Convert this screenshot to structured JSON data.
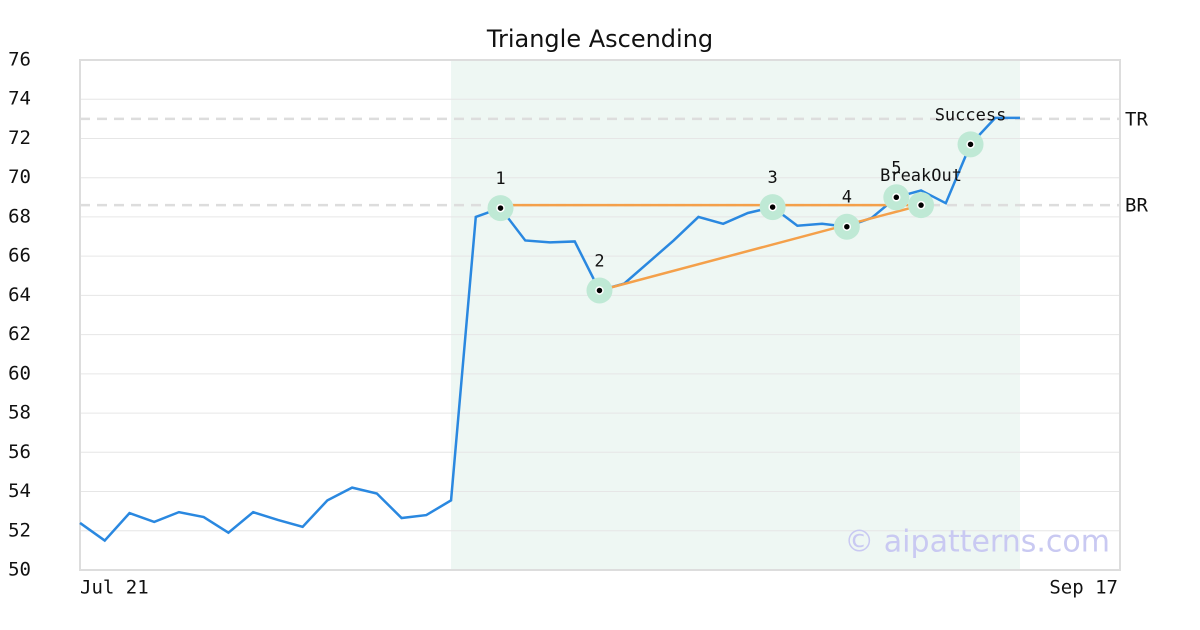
{
  "chart_data": {
    "type": "line",
    "title": "Triangle Ascending",
    "categories": [
      "Jul 21",
      null,
      null,
      null,
      null,
      null,
      null,
      null,
      null,
      null,
      null,
      null,
      null,
      null,
      null,
      null,
      null,
      null,
      null,
      null,
      null,
      null,
      null,
      null,
      null,
      null,
      null,
      null,
      null,
      null,
      null,
      null,
      null,
      null,
      null,
      null,
      null,
      null,
      "Sep 17"
    ],
    "series": [
      {
        "color": "#2a88e0",
        "values": [
          52.4,
          51.5,
          52.9,
          52.45,
          52.95,
          52.7,
          51.9,
          52.95,
          52.55,
          52.2,
          53.55,
          54.2,
          53.9,
          52.65,
          52.8,
          53.55,
          68.0,
          68.45,
          66.8,
          66.7,
          66.75,
          64.25,
          64.6,
          65.7,
          66.8,
          68.0,
          67.65,
          68.2,
          68.5,
          67.55,
          67.65,
          67.5,
          67.95,
          69.0,
          69.35,
          68.7,
          71.7,
          73.05,
          73.05
        ]
      }
    ],
    "ylim": [
      50,
      76
    ],
    "yticks": [
      50,
      52,
      54,
      56,
      58,
      60,
      62,
      64,
      66,
      68,
      70,
      72,
      74,
      76
    ],
    "grid": true,
    "highlight": {
      "from": 15,
      "to": 38,
      "color": "#eef7f3"
    },
    "levels": [
      {
        "label": "TR",
        "value": 73.0
      },
      {
        "label": "BR",
        "value": 68.6
      }
    ],
    "trend_lines": {
      "color": "#f4a04a",
      "lines": [
        {
          "x": [
            17,
            34
          ],
          "y": [
            68.6,
            68.6
          ]
        },
        {
          "x": [
            21,
            34
          ],
          "y": [
            64.25,
            68.6
          ]
        }
      ]
    },
    "points": [
      {
        "label": "1",
        "x": 17,
        "y": 68.45
      },
      {
        "label": "2",
        "x": 21,
        "y": 64.25
      },
      {
        "label": "3",
        "x": 28,
        "y": 68.5
      },
      {
        "label": "4",
        "x": 31,
        "y": 67.5
      },
      {
        "label": "5",
        "x": 33,
        "y": 69.0
      },
      {
        "label": "BreakOut",
        "x": 34,
        "y": 68.6
      },
      {
        "label": "Success",
        "x": 36,
        "y": 71.7
      }
    ],
    "watermark": "© aipatterns.com"
  }
}
